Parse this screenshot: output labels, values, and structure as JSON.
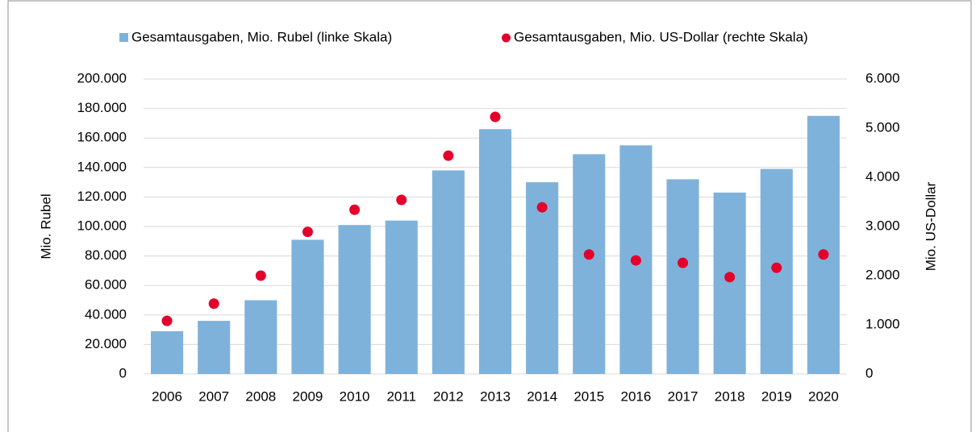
{
  "chart_data": {
    "type": "bar_scatter",
    "categories": [
      "2006",
      "2007",
      "2008",
      "2009",
      "2010",
      "2011",
      "2012",
      "2013",
      "2014",
      "2015",
      "2016",
      "2017",
      "2018",
      "2019",
      "2020"
    ],
    "series": [
      {
        "name": "Gesamtausgaben, Mio. Rubel (linke Skala)",
        "color": "#7fb2da",
        "type": "bar",
        "axis": "y",
        "values": [
          29000,
          36000,
          50000,
          91000,
          101000,
          104000,
          138000,
          166000,
          130000,
          149000,
          155000,
          132000,
          123000,
          139000,
          175000
        ]
      },
      {
        "name": "Gesamtausgaben, Mio. US-Dollar (rechte Skala)",
        "color": "#e4002b",
        "type": "scatter",
        "axis": "y2",
        "values": [
          1080,
          1430,
          2000,
          2890,
          3340,
          3540,
          4440,
          5230,
          3390,
          2430,
          2310,
          2260,
          1970,
          2160,
          2430
        ]
      }
    ],
    "ylabel": "Mio. Rubel",
    "y2label": "Mio. US-Dollar",
    "ylim": [
      0,
      200000
    ],
    "yticks": [
      0,
      {
        "value": 20000,
        "label": "20.000"
      },
      {
        "value": 40000,
        "label": "40.000"
      },
      {
        "value": 60000,
        "label": "60.000"
      },
      {
        "value": 80000,
        "label": "80.000"
      },
      {
        "value": 100000,
        "label": "100.000"
      },
      {
        "value": 120000,
        "label": "120.000"
      },
      {
        "value": 140000,
        "label": "140.000"
      },
      {
        "value": 160000,
        "label": "160.000"
      },
      {
        "value": 180000,
        "label": "180.000"
      },
      {
        "value": 200000,
        "label": "200.000"
      }
    ],
    "y2lim": [
      0,
      6000
    ],
    "y2ticks": [
      0,
      {
        "value": 1000,
        "label": "1.000"
      },
      {
        "value": 2000,
        "label": "2.000"
      },
      {
        "value": 3000,
        "label": "3.000"
      },
      {
        "value": 4000,
        "label": "4.000"
      },
      {
        "value": 5000,
        "label": "5.000"
      },
      {
        "value": 6000,
        "label": "6.000"
      }
    ],
    "grid": true,
    "legend": "top"
  }
}
